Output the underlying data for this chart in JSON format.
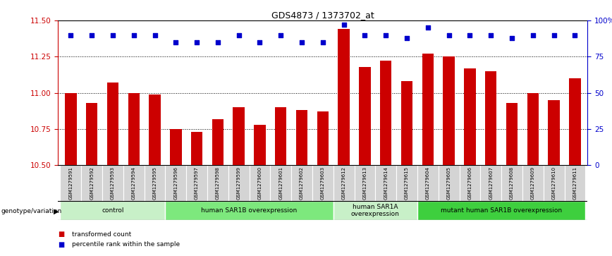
{
  "title": "GDS4873 / 1373702_at",
  "samples": [
    "GSM1279591",
    "GSM1279592",
    "GSM1279593",
    "GSM1279594",
    "GSM1279595",
    "GSM1279596",
    "GSM1279597",
    "GSM1279598",
    "GSM1279599",
    "GSM1279600",
    "GSM1279601",
    "GSM1279602",
    "GSM1279603",
    "GSM1279612",
    "GSM1279613",
    "GSM1279614",
    "GSM1279615",
    "GSM1279604",
    "GSM1279605",
    "GSM1279606",
    "GSM1279607",
    "GSM1279608",
    "GSM1279609",
    "GSM1279610",
    "GSM1279611"
  ],
  "red_values": [
    11.0,
    10.93,
    11.07,
    11.0,
    10.99,
    10.75,
    10.73,
    10.82,
    10.9,
    10.78,
    10.9,
    10.88,
    10.87,
    11.44,
    11.18,
    11.22,
    11.08,
    11.27,
    11.25,
    11.17,
    11.15,
    10.93,
    11.0,
    10.95,
    11.1
  ],
  "blue_values": [
    90,
    90,
    90,
    90,
    90,
    85,
    85,
    85,
    90,
    85,
    90,
    85,
    85,
    97,
    90,
    90,
    88,
    95,
    90,
    90,
    90,
    88,
    90,
    90,
    90
  ],
  "ylim_left": [
    10.5,
    11.5
  ],
  "ylim_right": [
    0,
    100
  ],
  "yticks_left": [
    10.5,
    10.75,
    11.0,
    11.25,
    11.5
  ],
  "yticks_right": [
    0,
    25,
    50,
    75,
    100
  ],
  "ytick_labels_right": [
    "0",
    "25",
    "50",
    "75",
    "100%"
  ],
  "groups": [
    {
      "label": "control",
      "start": 0,
      "end": 5,
      "color": "#c8f0c8"
    },
    {
      "label": "human SAR1B overexpression",
      "start": 5,
      "end": 13,
      "color": "#7de87d"
    },
    {
      "label": "human SAR1A\noverexpression",
      "start": 13,
      "end": 17,
      "color": "#c8f0c8"
    },
    {
      "label": "mutant human SAR1B overexpression",
      "start": 17,
      "end": 25,
      "color": "#3ecf3e"
    }
  ],
  "bar_color": "#cc0000",
  "dot_color": "#0000cc",
  "left_axis_color": "#cc0000",
  "right_axis_color": "#0000cc",
  "dotted_lines": [
    10.75,
    11.0,
    11.25
  ],
  "dot_size": 22,
  "legend_items": [
    {
      "label": "transformed count",
      "color": "#cc0000"
    },
    {
      "label": "percentile rank within the sample",
      "color": "#0000cc"
    }
  ],
  "main_axes": [
    0.095,
    0.355,
    0.865,
    0.565
  ],
  "gray_axes": [
    0.095,
    0.215,
    0.865,
    0.14
  ],
  "grp_axes": [
    0.095,
    0.14,
    0.865,
    0.075
  ]
}
